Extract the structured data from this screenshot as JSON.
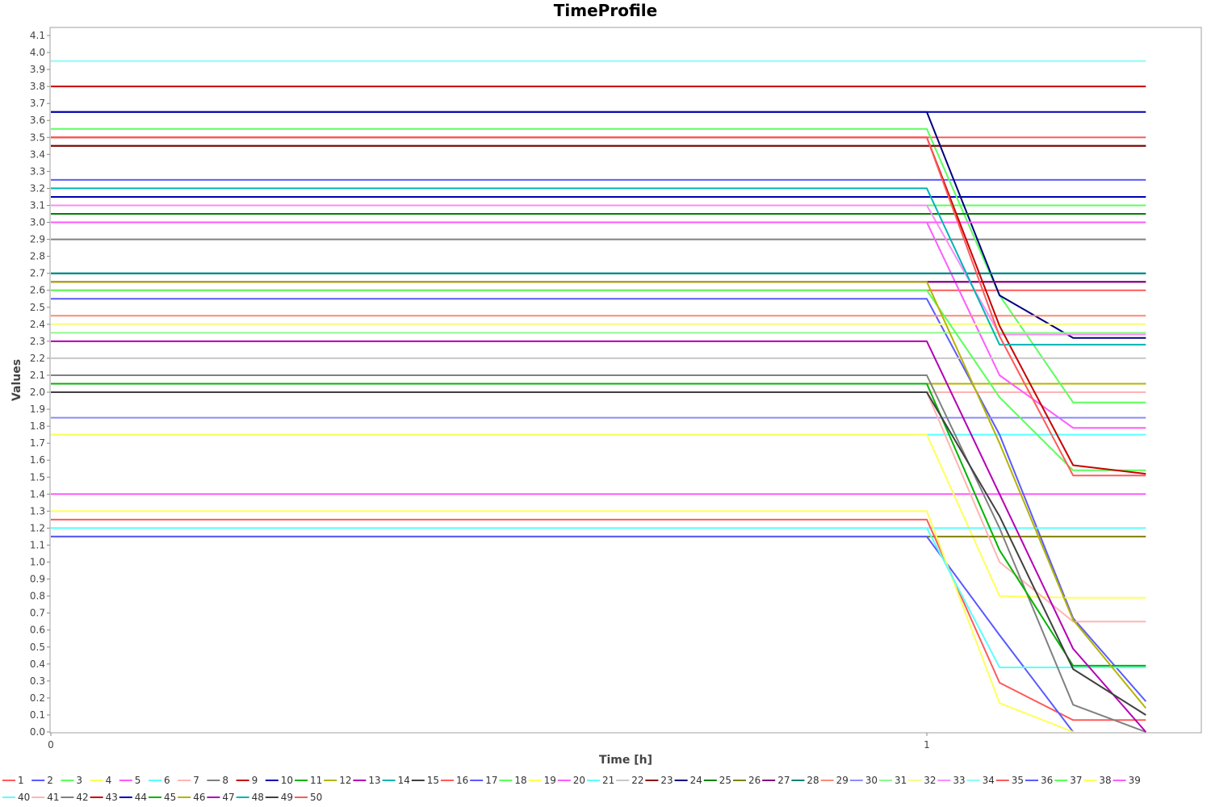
{
  "chart_data": {
    "type": "line",
    "title": "TimeProfile",
    "xlabel": "Time [h]",
    "ylabel": "Values",
    "xlim": [
      0,
      1.31
    ],
    "ylim": [
      0,
      4.15
    ],
    "x_ticks": [
      "0",
      "1"
    ],
    "y_ticks": [
      "0.0",
      "0.1",
      "0.2",
      "0.3",
      "0.4",
      "0.5",
      "0.6",
      "0.7",
      "0.8",
      "0.9",
      "1.0",
      "1.1",
      "1.2",
      "1.3",
      "1.4",
      "1.5",
      "1.6",
      "1.7",
      "1.8",
      "1.9",
      "2.0",
      "2.1",
      "2.2",
      "2.3",
      "2.4",
      "2.5",
      "2.6",
      "2.7",
      "2.8",
      "2.9",
      "3.0",
      "3.1",
      "3.2",
      "3.3",
      "3.4",
      "3.5",
      "3.6",
      "3.7",
      "3.8",
      "3.9",
      "4.0",
      "4.1"
    ],
    "grid": false,
    "legend_position": "bottom",
    "series": [
      {
        "name": "1",
        "color": "#FF5A5A",
        "x": [
          0,
          1,
          1.25
        ],
        "y": [
          3.5,
          3.5,
          3.5
        ]
      },
      {
        "name": "2",
        "color": "#5A5AFF",
        "x": [
          0,
          1,
          1.25
        ],
        "y": [
          3.25,
          3.25,
          3.25
        ]
      },
      {
        "name": "3",
        "color": "#5AFF5A",
        "x": [
          0,
          1,
          1.25
        ],
        "y": [
          3.1,
          3.1,
          3.1
        ]
      },
      {
        "name": "4",
        "color": "#FFFF5A",
        "x": [
          0,
          1,
          1.25
        ],
        "y": [
          2.4,
          2.4,
          2.4
        ]
      },
      {
        "name": "5",
        "color": "#FF5AFF",
        "x": [
          0,
          1,
          1.25
        ],
        "y": [
          1.4,
          1.4,
          1.4
        ]
      },
      {
        "name": "6",
        "color": "#5AFFFF",
        "x": [
          0,
          1,
          1.25
        ],
        "y": [
          1.75,
          1.75,
          1.75
        ]
      },
      {
        "name": "7",
        "color": "#FFB4B4",
        "x": [
          0,
          1,
          1.25
        ],
        "y": [
          2.0,
          2.0,
          2.0
        ]
      },
      {
        "name": "8",
        "color": "#808080",
        "x": [
          0,
          1,
          1.25
        ],
        "y": [
          2.9,
          2.9,
          2.9
        ]
      },
      {
        "name": "9",
        "color": "#C80000",
        "x": [
          0,
          1,
          1.25
        ],
        "y": [
          3.8,
          3.8,
          3.8
        ]
      },
      {
        "name": "10",
        "color": "#0000B4",
        "x": [
          0,
          1,
          1.25
        ],
        "y": [
          3.15,
          3.15,
          3.15
        ]
      },
      {
        "name": "11",
        "color": "#00B400",
        "x": [
          0,
          1,
          1.25
        ],
        "y": [
          2.05,
          2.05,
          2.05
        ]
      },
      {
        "name": "12",
        "color": "#B4B400",
        "x": [
          0,
          1,
          1.25
        ],
        "y": [
          2.05,
          2.05,
          2.05
        ]
      },
      {
        "name": "13",
        "color": "#B400B4",
        "x": [
          0,
          1,
          1.25
        ],
        "y": [
          2.65,
          2.65,
          2.65
        ]
      },
      {
        "name": "14",
        "color": "#00B4B4",
        "x": [
          0,
          1,
          1.25
        ],
        "y": [
          2.7,
          2.7,
          2.7
        ]
      },
      {
        "name": "15",
        "color": "#404040",
        "x": [
          0,
          1,
          1.25
        ],
        "y": [
          3.45,
          3.45,
          3.45
        ]
      },
      {
        "name": "16",
        "color": "#FF5A5A",
        "x": [
          0,
          1,
          1.25
        ],
        "y": [
          2.6,
          2.6,
          2.6
        ]
      },
      {
        "name": "17",
        "color": "#5A5AFF",
        "x": [
          0,
          1,
          1.083,
          1.167,
          1.25
        ],
        "y": [
          2.55,
          2.55,
          1.75,
          0.67,
          0.18
        ]
      },
      {
        "name": "18",
        "color": "#5AFF5A",
        "x": [
          0,
          1,
          1.083,
          1.167,
          1.25
        ],
        "y": [
          3.55,
          3.55,
          2.57,
          1.94,
          1.94
        ]
      },
      {
        "name": "19",
        "color": "#FFFF5A",
        "x": [
          0,
          1,
          1.083,
          1.167,
          1.25
        ],
        "y": [
          1.75,
          1.75,
          0.8,
          0.79,
          0.79
        ]
      },
      {
        "name": "20",
        "color": "#FF5AFF",
        "x": [
          0,
          1,
          1.083,
          1.167,
          1.25
        ],
        "y": [
          3.0,
          3.0,
          2.1,
          1.79,
          1.79
        ]
      },
      {
        "name": "21",
        "color": "#5AFFFF",
        "x": [
          0,
          1,
          1.25
        ],
        "y": [
          1.2,
          1.2,
          1.2
        ]
      },
      {
        "name": "22",
        "color": "#C8C8C8",
        "x": [
          0,
          1,
          1.25
        ],
        "y": [
          2.2,
          2.2,
          2.2
        ]
      },
      {
        "name": "23",
        "color": "#8C0000",
        "x": [
          0,
          1,
          1.25
        ],
        "y": [
          3.45,
          3.45,
          3.45
        ]
      },
      {
        "name": "24",
        "color": "#000080",
        "x": [
          0,
          1,
          1.083,
          1.167,
          1.25
        ],
        "y": [
          3.65,
          3.65,
          2.57,
          2.32,
          2.32
        ]
      },
      {
        "name": "25",
        "color": "#008000",
        "x": [
          0,
          1,
          1.25
        ],
        "y": [
          3.05,
          3.05,
          3.05
        ]
      },
      {
        "name": "26",
        "color": "#808000",
        "x": [
          0,
          1,
          1.25
        ],
        "y": [
          1.15,
          1.15,
          1.15
        ]
      },
      {
        "name": "27",
        "color": "#800080",
        "x": [
          0,
          1,
          1.25
        ],
        "y": [
          2.65,
          2.65,
          2.65
        ]
      },
      {
        "name": "28",
        "color": "#008080",
        "x": [
          0,
          1,
          1.25
        ],
        "y": [
          2.7,
          2.7,
          2.7
        ]
      },
      {
        "name": "29",
        "color": "#FA8C78",
        "x": [
          0,
          1,
          1.25
        ],
        "y": [
          2.45,
          2.45,
          2.45
        ]
      },
      {
        "name": "30",
        "color": "#8C8CFA",
        "x": [
          0,
          1,
          1.25
        ],
        "y": [
          1.85,
          1.85,
          1.85
        ]
      },
      {
        "name": "31",
        "color": "#8CFA8C",
        "x": [
          0,
          1,
          1.25
        ],
        "y": [
          2.35,
          2.35,
          2.35
        ]
      },
      {
        "name": "32",
        "color": "#FAFA8C",
        "x": [
          0,
          1,
          1.25
        ],
        "y": [
          2.4,
          2.4,
          2.4
        ]
      },
      {
        "name": "33",
        "color": "#FA8CFA",
        "x": [
          0,
          1,
          1.083,
          1.167,
          1.25
        ],
        "y": [
          3.1,
          3.1,
          2.34,
          2.34,
          2.34
        ]
      },
      {
        "name": "34",
        "color": "#8CFAFA",
        "x": [
          0,
          1,
          1.25
        ],
        "y": [
          3.95,
          3.95,
          3.95
        ]
      },
      {
        "name": "35",
        "color": "#FF5A5A",
        "x": [
          0,
          1,
          1.083,
          1.167,
          1.25
        ],
        "y": [
          1.25,
          1.25,
          0.29,
          0.07,
          0.07
        ]
      },
      {
        "name": "36",
        "color": "#5A5AFF",
        "x": [
          0,
          1,
          1.083,
          1.167
        ],
        "y": [
          1.15,
          1.15,
          0.57,
          0.0
        ]
      },
      {
        "name": "37",
        "color": "#5AFF5A",
        "x": [
          0,
          1,
          1.083,
          1.167,
          1.25
        ],
        "y": [
          2.6,
          2.6,
          1.97,
          1.54,
          1.54
        ]
      },
      {
        "name": "38",
        "color": "#FFFF5A",
        "x": [
          0,
          1,
          1.083,
          1.167
        ],
        "y": [
          1.3,
          1.3,
          0.17,
          0.0
        ]
      },
      {
        "name": "39",
        "color": "#FF5AFF",
        "x": [
          0,
          1,
          1.25
        ],
        "y": [
          3.0,
          3.0,
          3.0
        ]
      },
      {
        "name": "40",
        "color": "#5AFFFF",
        "x": [
          0,
          1,
          1.083,
          1.167,
          1.25
        ],
        "y": [
          1.2,
          1.2,
          0.38,
          0.38,
          0.38
        ]
      },
      {
        "name": "41",
        "color": "#FFB4B4",
        "x": [
          0,
          1,
          1.083,
          1.167,
          1.25
        ],
        "y": [
          2.0,
          2.0,
          1.0,
          0.65,
          0.65
        ]
      },
      {
        "name": "42",
        "color": "#808080",
        "x": [
          0,
          1,
          1.083,
          1.167,
          1.25
        ],
        "y": [
          2.1,
          2.1,
          1.2,
          0.16,
          0.0
        ]
      },
      {
        "name": "43",
        "color": "#C80000",
        "x": [
          0,
          1,
          1.083,
          1.167,
          1.25
        ],
        "y": [
          3.5,
          3.5,
          2.39,
          1.57,
          1.52
        ]
      },
      {
        "name": "44",
        "color": "#0000B4",
        "x": [
          0,
          1,
          1.25
        ],
        "y": [
          3.65,
          3.65,
          3.65
        ]
      },
      {
        "name": "45",
        "color": "#00B400",
        "x": [
          0,
          1,
          1.083,
          1.167,
          1.25
        ],
        "y": [
          2.05,
          2.05,
          1.07,
          0.39,
          0.39
        ]
      },
      {
        "name": "46",
        "color": "#B4B400",
        "x": [
          0,
          1,
          1.083,
          1.167,
          1.25
        ],
        "y": [
          2.65,
          2.65,
          1.7,
          0.66,
          0.14
        ]
      },
      {
        "name": "47",
        "color": "#B400B4",
        "x": [
          0,
          1,
          1.083,
          1.167,
          1.25
        ],
        "y": [
          2.3,
          2.3,
          1.4,
          0.49,
          0.0
        ]
      },
      {
        "name": "48",
        "color": "#00B4B4",
        "x": [
          0,
          1,
          1.083,
          1.167,
          1.25
        ],
        "y": [
          3.2,
          3.2,
          2.28,
          2.28,
          2.28
        ]
      },
      {
        "name": "49",
        "color": "#404040",
        "x": [
          0,
          1,
          1.083,
          1.167,
          1.25
        ],
        "y": [
          2.0,
          2.0,
          1.27,
          0.37,
          0.1
        ]
      },
      {
        "name": "50",
        "color": "#FF5A5A",
        "x": [
          0,
          1,
          1.083,
          1.167,
          1.25
        ],
        "y": [
          3.5,
          3.5,
          2.33,
          1.51,
          1.51
        ]
      }
    ]
  }
}
